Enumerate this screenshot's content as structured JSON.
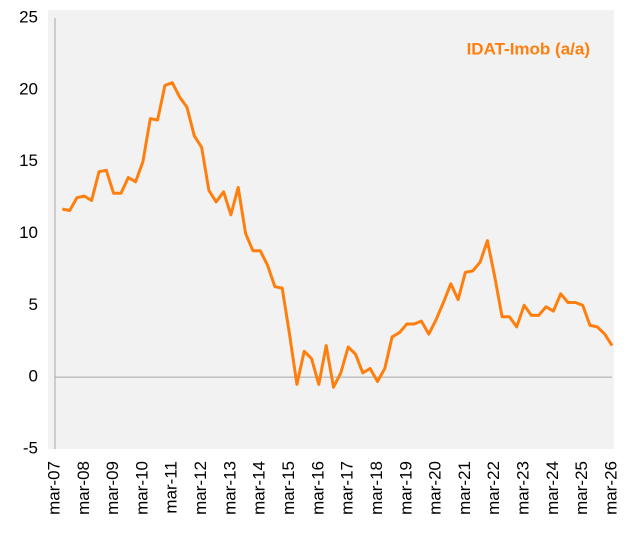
{
  "chart_data": {
    "type": "line",
    "categories": [
      "mar-07",
      null,
      null,
      null,
      "mar-08",
      null,
      null,
      null,
      "mar-09",
      null,
      null,
      null,
      "mar-10",
      null,
      null,
      null,
      "mar-11",
      null,
      null,
      null,
      "mar-12",
      null,
      null,
      null,
      "mar-13",
      null,
      null,
      null,
      "mar-14",
      null,
      null,
      null,
      "mar-15",
      null,
      null,
      null,
      "mar-16",
      null,
      null,
      null,
      "mar-17",
      null,
      null,
      null,
      "mar-18",
      null,
      null,
      null,
      "mar-19",
      null,
      null,
      null,
      "mar-20",
      null,
      null,
      null,
      "mar-21",
      null,
      null,
      null,
      "mar-22",
      null,
      null,
      null,
      "mar-23",
      null,
      null,
      null,
      "mar-24",
      null,
      null,
      null,
      "mar-25",
      null,
      null,
      null,
      "mar-26"
    ],
    "series": [
      {
        "name": "IDAT-Imob (a/a)",
        "color": "#ff7f0e",
        "values": [
          null,
          11.7,
          11.6,
          12.5,
          12.6,
          12.3,
          14.3,
          14.4,
          12.8,
          12.8,
          13.9,
          13.6,
          15.0,
          18.0,
          17.9,
          20.3,
          20.5,
          19.5,
          18.8,
          16.8,
          16.0,
          13.0,
          12.2,
          12.9,
          11.3,
          13.2,
          10.0,
          8.8,
          8.8,
          7.8,
          6.3,
          6.2,
          3.0,
          -0.5,
          1.8,
          1.3,
          -0.5,
          2.2,
          -0.7,
          0.3,
          2.1,
          1.6,
          0.3,
          0.6,
          -0.3,
          0.6,
          2.8,
          3.1,
          3.7,
          3.7,
          3.9,
          3.0,
          4.0,
          5.2,
          6.5,
          5.4,
          7.3,
          7.4,
          8.0,
          9.5,
          7.0,
          4.2,
          4.2,
          3.5,
          5.0,
          4.3,
          4.3,
          4.9,
          4.6,
          5.8,
          5.2,
          5.2,
          5.0,
          3.6,
          3.5,
          3.0,
          2.2
        ]
      }
    ],
    "ylim": [
      -5,
      25
    ],
    "yticks": [
      -5,
      0,
      5,
      10,
      15,
      20,
      25
    ],
    "legend": "top-right"
  }
}
